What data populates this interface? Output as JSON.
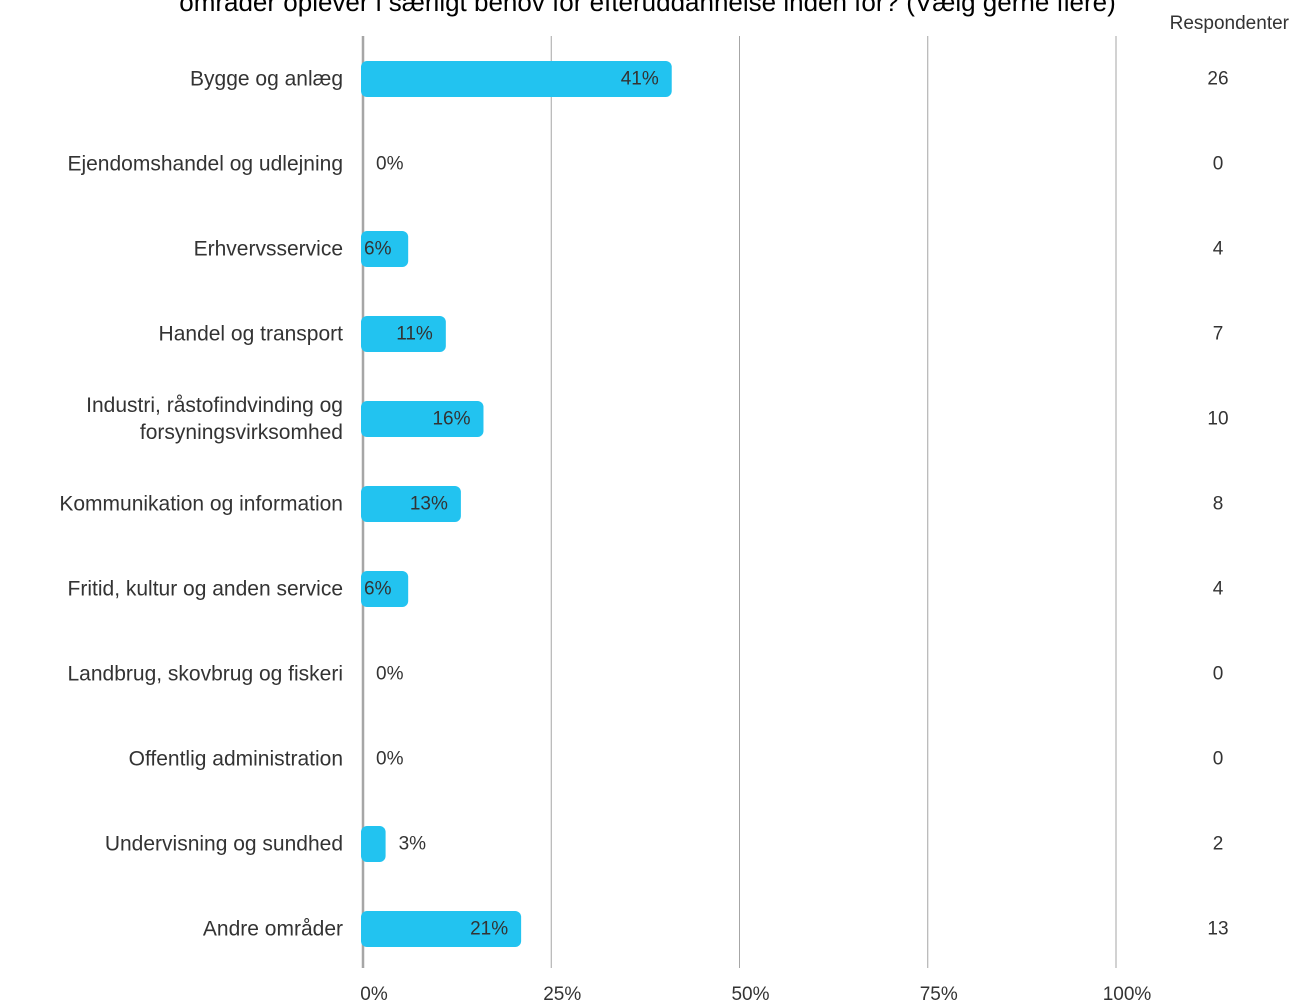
{
  "chart_data": {
    "type": "bar",
    "orientation": "horizontal",
    "title": "områder oplever i særligt behov for efteruddannelse inden for? (Vælg gerne flere)",
    "respondents_label": "Respondenter",
    "categories": [
      "Bygge og anlæg",
      "Ejendomshandel og udlejning",
      "Erhvervsservice",
      "Handel og transport",
      "Industri, råstofindvinding og forsyningsvirksomhed",
      "Kommunikation og information",
      "Fritid, kultur og anden service",
      "Landbrug, skovbrug og fiskeri",
      "Offentlig administration",
      "Undervisning og sundhed",
      "Andre områder"
    ],
    "category_lines": [
      [
        "Bygge og anlæg"
      ],
      [
        "Ejendomshandel og udlejning"
      ],
      [
        "Erhvervsservice"
      ],
      [
        "Handel og transport"
      ],
      [
        "Industri, råstofindvinding og",
        "forsyningsvirksomhed"
      ],
      [
        "Kommunikation og information"
      ],
      [
        "Fritid, kultur og anden service"
      ],
      [
        "Landbrug, skovbrug og fiskeri"
      ],
      [
        "Offentlig administration"
      ],
      [
        "Undervisning og sundhed"
      ],
      [
        "Andre områder"
      ]
    ],
    "values": [
      41,
      0,
      6,
      11,
      16,
      13,
      6,
      0,
      0,
      3,
      21
    ],
    "value_labels": [
      "41%",
      "0%",
      "6%",
      "11%",
      "16%",
      "13%",
      "6%",
      "0%",
      "0%",
      "3%",
      "21%"
    ],
    "respondents": [
      26,
      0,
      4,
      7,
      10,
      8,
      4,
      0,
      0,
      2,
      13
    ],
    "xlim": [
      0,
      100
    ],
    "xticks": [
      0,
      25,
      50,
      75,
      100
    ],
    "xtick_labels": [
      "0%",
      "25%",
      "50%",
      "75%",
      "100%"
    ],
    "grid": true,
    "bar_color": "#22c3f0",
    "grid_color": "#a6a6a6",
    "axis_color": "#a6a6a6",
    "text_color": "#333333"
  }
}
